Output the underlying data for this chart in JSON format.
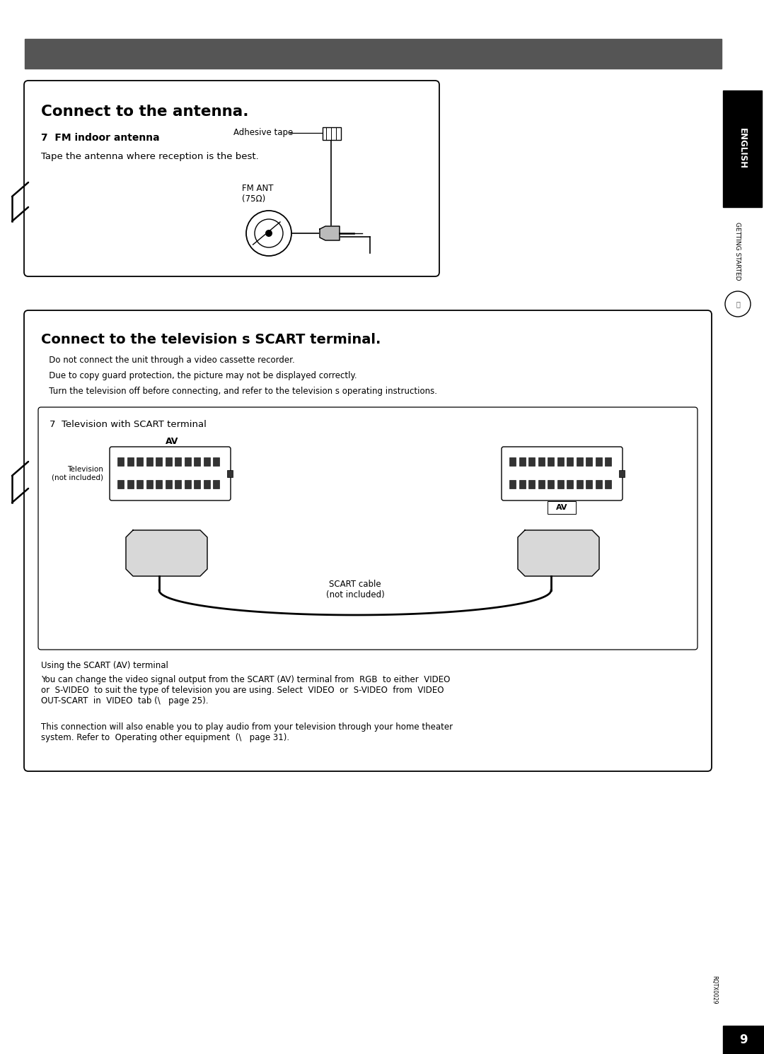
{
  "bg_color": "#ffffff",
  "dark_bar_color": "#555555",
  "page_number": "9",
  "english_text": "ENGLISH",
  "getting_started_text": "GETTING STARTED",
  "box1_title": "Connect to the antenna.",
  "box1_subtitle": "7  FM indoor antenna",
  "box1_body": "Tape the antenna where reception is the best.",
  "box1_adhesive_label": "Adhesive tape",
  "box1_fm_ant_label": "FM ANT\n(75Ω)",
  "box2_title": "Connect to the television s SCART terminal.",
  "box2_line1": "   Do not connect the unit through a video cassette recorder.",
  "box2_line2": "   Due to copy guard protection, the picture may not be displayed correctly.",
  "box2_line3": "   Turn the television off before connecting, and refer to the television s operating instructions.",
  "box2_inner_title": "7  Television with SCART terminal",
  "box2_tv_label": "Television\n(not included)",
  "box2_scart_label": "SCART cable\n(not included)",
  "box2_av_label": "AV",
  "box2_using_text": "Using the SCART (AV) terminal",
  "box2_body1": "You can change the video signal output from the SCART (AV) terminal from  RGB  to either  VIDEO\nor  S-VIDEO  to suit the type of television you are using. Select  VIDEO  or  S-VIDEO  from  VIDEO\nOUT-SCART  in  VIDEO  tab (\\   page 25).",
  "box2_body2": "This connection will also enable you to play audio from your television through your home theater\nsystem. Refer to  Operating other equipment  (\\   page 31)."
}
